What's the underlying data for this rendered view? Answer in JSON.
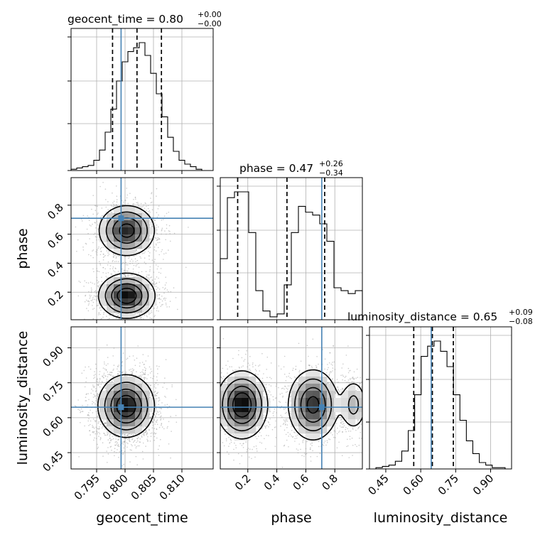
{
  "chart_data": {
    "type": "corner",
    "parameters": [
      "geocent_time",
      "phase",
      "luminosity_distance"
    ],
    "ranges": {
      "geocent_time": [
        0.7905,
        0.8155
      ],
      "phase": [
        0.01,
        0.99
      ],
      "luminosity_distance": [
        0.38,
        0.99
      ]
    },
    "truths": {
      "geocent_time": 0.7993,
      "phase": 0.71,
      "luminosity_distance": 0.645
    },
    "titles": [
      {
        "param": "geocent_time",
        "label": "geocent_time = 0.80",
        "upper": "+0.00",
        "lower": "−0.00"
      },
      {
        "param": "phase",
        "label": "phase = 0.47",
        "upper": "+0.26",
        "lower": "−0.34"
      },
      {
        "param": "luminosity_distance",
        "label": "luminosity_distance = 0.65",
        "upper": "+0.09",
        "lower": "−0.08"
      }
    ],
    "quantiles": {
      "geocent_time": [
        0.7978,
        0.8021,
        0.8064
      ],
      "phase": [
        0.13,
        0.47,
        0.73
      ],
      "luminosity_distance": [
        0.57,
        0.65,
        0.74
      ]
    },
    "ticks": {
      "geocent_time": [
        "0.795",
        "0.800",
        "0.805",
        "0.810"
      ],
      "phase": [
        "0.2",
        "0.4",
        "0.6",
        "0.8"
      ],
      "luminosity_distance": [
        "0.45",
        "0.60",
        "0.75",
        "0.90"
      ]
    },
    "histograms": {
      "geocent_time": [
        1,
        2,
        3,
        4,
        8,
        16,
        30,
        48,
        70,
        85,
        93,
        96,
        100,
        90,
        76,
        60,
        42,
        26,
        15,
        8,
        5,
        3,
        1,
        0,
        0
      ],
      "phase": [
        42,
        84,
        88,
        88,
        60,
        20,
        6,
        2,
        4,
        24,
        60,
        78,
        74,
        72,
        66,
        54,
        22,
        20,
        18,
        20
      ],
      "luminosity_distance": [
        0,
        1,
        2,
        3,
        6,
        14,
        30,
        58,
        88,
        96,
        100,
        92,
        80,
        58,
        38,
        22,
        12,
        5,
        3,
        1,
        1,
        0
      ]
    },
    "blobs": {
      "phase_vs_geocent_time": [
        {
          "x": 0.8003,
          "y": 0.625,
          "sx": 0.0024,
          "sy": 0.085,
          "w": 1.0
        },
        {
          "x": 0.8003,
          "y": 0.175,
          "sx": 0.0024,
          "sy": 0.075,
          "w": 1.1
        }
      ],
      "luminosity_distance_vs_geocent_time": [
        {
          "x": 0.8002,
          "y": 0.65,
          "sx": 0.0024,
          "sy": 0.065,
          "w": 1.0
        }
      ],
      "luminosity_distance_vs_phase": [
        {
          "x": 0.16,
          "y": 0.655,
          "sx": 0.085,
          "sy": 0.07,
          "w": 1.0
        },
        {
          "x": 0.65,
          "y": 0.655,
          "sx": 0.085,
          "sy": 0.075,
          "w": 0.85
        },
        {
          "x": 0.93,
          "y": 0.655,
          "sx": 0.05,
          "sy": 0.06,
          "w": 0.35
        }
      ]
    },
    "grid": true,
    "colors": {
      "truth": "#4682b4",
      "line": "#000000",
      "grid": "#b0b0b0"
    }
  }
}
